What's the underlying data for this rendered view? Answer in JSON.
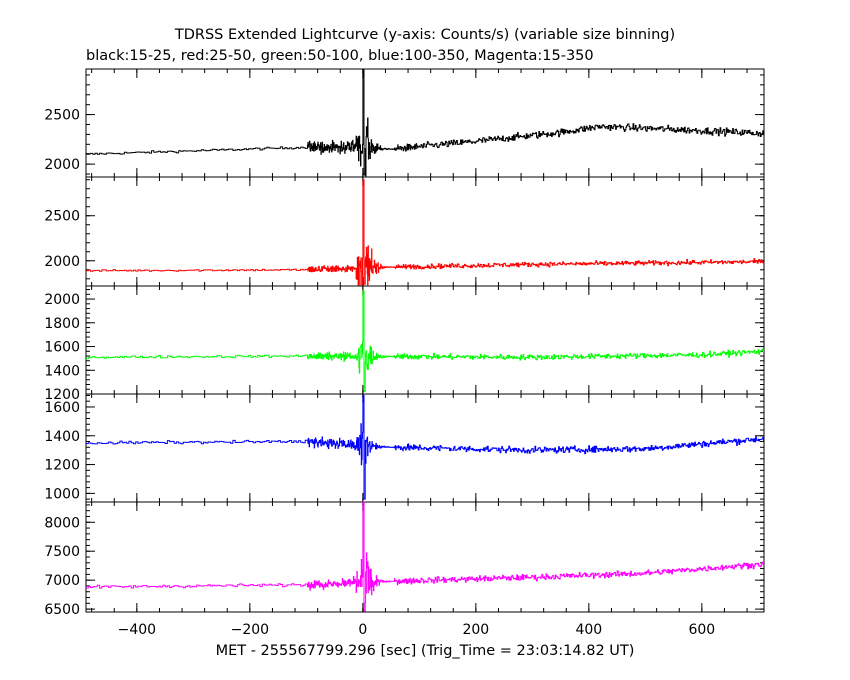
{
  "chart_data": {
    "type": "line",
    "title": "TDRSS Extended Lightcurve (y-axis: Counts/s) (variable size binning)",
    "subtitle": "black:15-25, red:25-50, green:50-100, blue:100-350, Magenta:15-350",
    "xlabel": "MET - 255567799.296 [sec] (Trig_Time = 23:03:14.82 UT)",
    "xlim": [
      -490,
      710
    ],
    "x_ticks": [
      -400,
      -200,
      0,
      200,
      400,
      600
    ],
    "x_tick_labels": [
      "−400",
      "−200",
      "0",
      "200",
      "400",
      "600"
    ],
    "panels": [
      {
        "name": "black:15-25",
        "color": "#000000",
        "ylim": [
          1870,
          2960
        ],
        "y_ticks": [
          2000,
          2500
        ],
        "y_tick_labels": [
          "2000",
          "2500"
        ],
        "baseline": [
          [
            -490,
            2100
          ],
          [
            -100,
            2170
          ],
          [
            0,
            2170
          ],
          [
            50,
            2150
          ],
          [
            200,
            2230
          ],
          [
            350,
            2320
          ],
          [
            420,
            2380
          ],
          [
            550,
            2350
          ],
          [
            710,
            2310
          ]
        ],
        "noise_pre": 12,
        "noise_post": 35,
        "burst_peak": 2960,
        "burst_dip": 1890
      },
      {
        "name": "red:25-50",
        "color": "#ff0000",
        "ylim": [
          1720,
          2930
        ],
        "y_ticks": [
          2000,
          2500
        ],
        "y_tick_labels": [
          "2000",
          "2500"
        ],
        "baseline": [
          [
            -490,
            1890
          ],
          [
            -100,
            1900
          ],
          [
            50,
            1930
          ],
          [
            300,
            1960
          ],
          [
            710,
            1990
          ]
        ],
        "noise_pre": 10,
        "noise_post": 25,
        "burst_peak": 2900,
        "burst_dip": 1740
      },
      {
        "name": "green:50-100",
        "color": "#00ff00",
        "ylim": [
          1200,
          2110
        ],
        "y_ticks": [
          1200,
          1400,
          1600,
          1800,
          2000
        ],
        "y_tick_labels": [
          "1200",
          "1400",
          "1600",
          "1800",
          "2000"
        ],
        "baseline": [
          [
            -490,
            1510
          ],
          [
            -100,
            1520
          ],
          [
            300,
            1510
          ],
          [
            600,
            1530
          ],
          [
            710,
            1560
          ]
        ],
        "noise_pre": 10,
        "noise_post": 22,
        "burst_peak": 2070,
        "burst_dip": 1220
      },
      {
        "name": "blue:100-350",
        "color": "#0000ff",
        "ylim": [
          940,
          1690
        ],
        "y_ticks": [
          1000,
          1200,
          1400,
          1600
        ],
        "y_tick_labels": [
          "1000",
          "1200",
          "1400",
          "1600"
        ],
        "baseline": [
          [
            -490,
            1350
          ],
          [
            -100,
            1360
          ],
          [
            50,
            1320
          ],
          [
            300,
            1300
          ],
          [
            500,
            1310
          ],
          [
            710,
            1380
          ]
        ],
        "noise_pre": 10,
        "noise_post": 22,
        "burst_peak": 1680,
        "burst_dip": 960
      },
      {
        "name": "Magenta:15-350",
        "color": "#ff00ff",
        "ylim": [
          6450,
          8350
        ],
        "y_ticks": [
          6500,
          7000,
          7500,
          8000
        ],
        "y_tick_labels": [
          "6500",
          "7000",
          "7500",
          "8000"
        ],
        "baseline": [
          [
            -490,
            6880
          ],
          [
            -100,
            6920
          ],
          [
            50,
            6980
          ],
          [
            300,
            7050
          ],
          [
            500,
            7120
          ],
          [
            710,
            7280
          ]
        ],
        "noise_pre": 25,
        "noise_post": 50,
        "burst_peak": 8350,
        "burst_dip": 6460
      }
    ],
    "grid": false,
    "legend": "none"
  }
}
